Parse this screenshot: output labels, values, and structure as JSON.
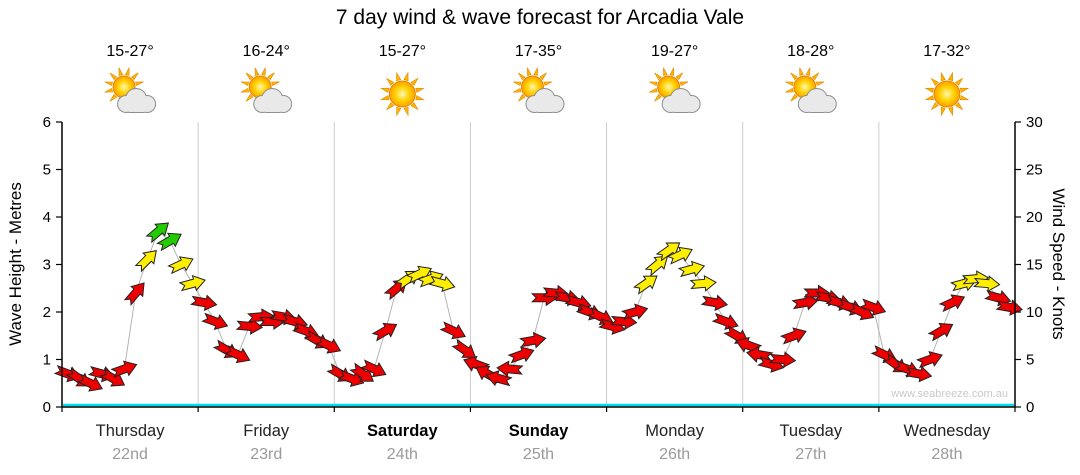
{
  "title": "7 day wind & wave forecast for Arcadia Vale",
  "watermark": "www.seabreeze.com.au",
  "axes": {
    "left_label": "Wave Height - Metres",
    "right_label": "Wind Speed - Knots",
    "left_ticks": [
      0,
      1,
      2,
      3,
      4,
      5,
      6
    ],
    "right_ticks": [
      0,
      5,
      10,
      15,
      20,
      25,
      30
    ]
  },
  "days": [
    {
      "name": "Thursday",
      "date": "22nd",
      "temp": "15-27°",
      "icon": "sun-cloud",
      "bold": false
    },
    {
      "name": "Friday",
      "date": "23rd",
      "temp": "16-24°",
      "icon": "sun-cloud",
      "bold": false
    },
    {
      "name": "Saturday",
      "date": "24th",
      "temp": "15-27°",
      "icon": "sun",
      "bold": true
    },
    {
      "name": "Sunday",
      "date": "25th",
      "temp": "17-35°",
      "icon": "sun-cloud",
      "bold": true
    },
    {
      "name": "Monday",
      "date": "26th",
      "temp": "19-27°",
      "icon": "sun-cloud",
      "bold": false
    },
    {
      "name": "Tuesday",
      "date": "27th",
      "temp": "18-28°",
      "icon": "sun-cloud",
      "bold": false
    },
    {
      "name": "Wednesday",
      "date": "28th",
      "temp": "17-32°",
      "icon": "sun",
      "bold": false
    }
  ],
  "chart_data": {
    "type": "wind-arrows",
    "title": "7 day wind & wave forecast for Arcadia Vale",
    "ylabel_left": "Wave Height - Metres",
    "ylabel_right": "Wind Speed - Knots",
    "ylim_left_metres": [
      0,
      6
    ],
    "ylim_right_knots": [
      0,
      30
    ],
    "points_per_day": 12,
    "wave_height_m_flat": 0,
    "thresholds_knots": {
      "yellow_min": 13,
      "green_min": 17.5
    },
    "colors": {
      "light_wind": "#ee0000",
      "moderate_wind": "#ffee00",
      "fresh_wind": "#22cc00",
      "wave_line": "#00dff0",
      "grid": "#cccccc",
      "connector": "#b4b4b4"
    },
    "series": [
      {
        "day": "Thursday",
        "knots": [
          3.5,
          3,
          2.5,
          3.5,
          3,
          4,
          12,
          15.5,
          18.5,
          17.5,
          15,
          13
        ],
        "dir_deg": [
          20,
          35,
          25,
          15,
          30,
          -20,
          -50,
          -45,
          -40,
          -30,
          -25,
          -15
        ]
      },
      {
        "day": "Friday",
        "knots": [
          11,
          9,
          6,
          5.5,
          8.5,
          9.5,
          9,
          9.5,
          9,
          8,
          7,
          6.5
        ],
        "dir_deg": [
          10,
          20,
          30,
          25,
          5,
          -5,
          0,
          10,
          15,
          20,
          30,
          25
        ]
      },
      {
        "day": "Saturday",
        "knots": [
          3.5,
          3,
          3.5,
          4,
          8,
          12.5,
          13.5,
          14,
          13.5,
          13,
          8,
          6
        ],
        "dir_deg": [
          30,
          20,
          35,
          25,
          -30,
          -40,
          -35,
          -25,
          -20,
          15,
          25,
          35
        ]
      },
      {
        "day": "Sunday",
        "knots": [
          4.5,
          3.5,
          3,
          4,
          5.5,
          7,
          11.5,
          12,
          11.5,
          11,
          10,
          9.5
        ],
        "dir_deg": [
          200,
          210,
          195,
          185,
          -20,
          -10,
          0,
          5,
          10,
          15,
          20,
          25
        ]
      },
      {
        "day": "Monday",
        "knots": [
          8.5,
          9,
          10,
          13,
          15,
          16.5,
          16,
          14.5,
          13,
          11,
          9,
          7.5
        ],
        "dir_deg": [
          15,
          5,
          -15,
          -35,
          -40,
          -35,
          -25,
          -15,
          -5,
          10,
          20,
          30
        ]
      },
      {
        "day": "Tuesday",
        "knots": [
          6.5,
          5.5,
          4.5,
          5,
          7.5,
          11,
          12,
          11.5,
          11,
          10.5,
          10,
          10.5
        ],
        "dir_deg": [
          200,
          190,
          15,
          5,
          -20,
          -10,
          0,
          10,
          15,
          20,
          25,
          20
        ]
      },
      {
        "day": "Wednesday",
        "knots": [
          5.5,
          4.5,
          4,
          3.5,
          5,
          8,
          11,
          13,
          13.5,
          13,
          11.5,
          10.5
        ],
        "dir_deg": [
          25,
          35,
          20,
          10,
          -20,
          -30,
          -25,
          -15,
          -5,
          5,
          15,
          10
        ]
      }
    ]
  }
}
